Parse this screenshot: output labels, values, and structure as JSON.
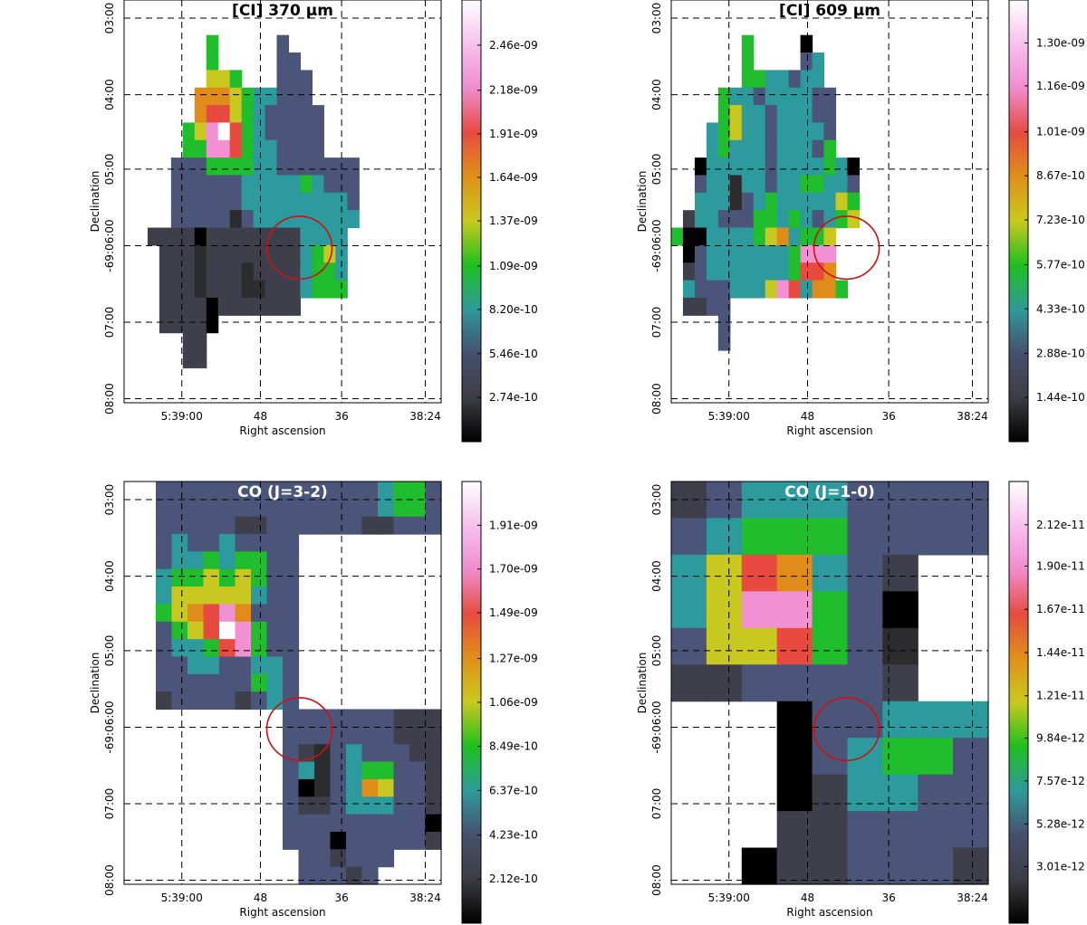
{
  "chart_data": [
    {
      "type": "heatmap",
      "title": "[CI] 370 µm",
      "title_color": "#000000",
      "xlabel": "Right ascension",
      "ylabel": "Declination",
      "x_ticks": [
        "5:39:00",
        "48",
        "36",
        "38:24"
      ],
      "y_ticks": [
        "03:00",
        "04:00",
        "05:00",
        "-69:06:00",
        "07:00",
        "08:00"
      ],
      "colorbar_ticks": [
        "2.74e-10",
        "5.46e-10",
        "8.20e-10",
        "1.09e-09",
        "1.37e-09",
        "1.64e-09",
        "1.91e-09",
        "2.18e-09",
        "2.46e-09"
      ],
      "colorbar_range": [
        0,
        2.74e-09
      ],
      "circle_marker": true,
      "grid": [
        "...........................",
        "...........................",
        ".......G.....A.............",
        ".......G.....AA............",
        ".......YYG...AAA...........",
        "......OOOYGTTAAA...........",
        "......ORRYGTAAAAA..........",
        ".....GYPWRGTAAAAA..........",
        ".....GGPPRGTTAAAA..........",
        "....AAAGGGGTTAAAAAAA.......",
        "....AAAAAATTTTTGTAAA.......",
        "....AAAAAATTTTTTTTTA.......",
        "....AAAAABATTTTTTTTT.......",
        "..DDDDKDDDDDDDDTTTT........",
        "...DDDBDDDDDDDDTGYT........",
        "...DDDBDDDBDDDDTGGT........",
        "...DDDBDDDBBDDDTGGG........",
        "...DDDDKDDDDDDD............",
        "...DDDDK...................",
        ".....DD....................",
        ".....DD....................",
        "...........................",
        "..........................."
      ]
    },
    {
      "type": "heatmap",
      "title": "[CI] 609 µm",
      "title_color": "#000000",
      "xlabel": "Right ascension",
      "ylabel": "Declination",
      "x_ticks": [
        "5:39:00",
        "48",
        "36",
        "38:24"
      ],
      "y_ticks": [
        "03:00",
        "04:00",
        "05:00",
        "-69:06:00",
        "07:00",
        "08:00"
      ],
      "colorbar_ticks": [
        "1.44e-10",
        "2.88e-10",
        "4.33e-10",
        "5.77e-10",
        "7.23e-10",
        "8.67e-10",
        "1.01e-09",
        "1.16e-09",
        "1.30e-09"
      ],
      "colorbar_range": [
        0,
        1.44e-09
      ],
      "circle_marker": true,
      "grid": [
        "...........................",
        "...........................",
        "......G....K...............",
        "......G....AT..............",
        "......GGTTATT..............",
        "....GTTATTTTAA.............",
        "....GYTTATTTAA.............",
        "...TGYTTATTTTA.............",
        "...TGTTTATTTAG.............",
        "..KTTTTTATTTTGTK...........",
        "..ATTBTTATTGGTTA...........",
        "..TTTBATGTTTTTYG...........",
        ".DTTAAAGGTGTATGY...........",
        "GKKTTTTGYOTGGY.............",
        ".KATTTTTTTGPPP.............",
        ".DATTTTTTTGRRO.............",
        ".TAAATTTYPRTOOG............",
        ".DDAA......................",
        "....A......................",
        "....A......................",
        "...........................",
        "...........................",
        "..........................."
      ]
    },
    {
      "type": "heatmap",
      "title": "CO (J=3-2)",
      "title_color": "#ffffff",
      "xlabel": "Right ascension",
      "ylabel": "Declination",
      "x_ticks": [
        "5:39:00",
        "48",
        "36",
        "38:24"
      ],
      "y_ticks": [
        "03:00",
        "04:00",
        "05:00",
        "-69:06:00",
        "07:00",
        "08:00"
      ],
      "colorbar_ticks": [
        "2.12e-10",
        "4.23e-10",
        "6.37e-10",
        "8.49e-10",
        "1.06e-09",
        "1.27e-09",
        "1.49e-09",
        "1.70e-09",
        "1.91e-09"
      ],
      "colorbar_range": [
        0,
        2.12e-09
      ],
      "circle_marker": true,
      "grid": [
        "..AAAAAAAAAAAAAATGGA",
        "..AAAAAAAAAAAAAATGGA",
        "..AAAAADDAAAAAADDAAA",
        "..ATAATAAAA.........",
        "..ATTGTGGAA.........",
        "..TGGYGYGAA.........",
        "..TYYYYYTAA.........",
        "..GYORPOAAA.........",
        "..AGYRWPGAA.........",
        "..ATTGRPGAA.........",
        "..AATTAATTA.........",
        "..AAAAAAGTA.........",
        "..DAAAADATA.........",
        "..........AAAAAAADDD",
        "..........AAAAAAADDD",
        "..........ADBATAAADD",
        "..........ATBATGGAAD",
        "..........AKBATOYAAD",
        "..........ADDATTTAAD",
        "..........AAAAAAAAAK",
        "..........AAAKAAAAAD",
        "...........AADAAA...",
        "...........AAADA...."
      ]
    },
    {
      "type": "heatmap",
      "title": "CO (J=1-0)",
      "title_color": "#ffffff",
      "xlabel": "Right ascension",
      "ylabel": "Declination",
      "x_ticks": [
        "5:39:00",
        "48",
        "36",
        "38:24"
      ],
      "y_ticks": [
        "03:00",
        "04:00",
        "05:00",
        "-69:06:00",
        "07:00",
        "08:00"
      ],
      "colorbar_ticks": [
        "3.01e-12",
        "5.28e-12",
        "7.57e-12",
        "9.84e-12",
        "1.21e-11",
        "1.44e-11",
        "1.67e-11",
        "1.90e-11",
        "2.12e-11"
      ],
      "colorbar_range": [
        0,
        2.35e-11
      ],
      "circle_marker": true,
      "grid": [
        "DATTTAAAA",
        "ATGGGAAAA",
        "TYROTAD..",
        "TYPPGAK..",
        "AYYRGAB..",
        "DDAAAAD..",
        "...KAATTT",
        "...KATGGA",
        "...KDTTAA",
        "...DDAAAA",
        "..KDDAAAD"
      ]
    }
  ],
  "colors": {
    "grid_line": "#000000",
    "circle": "#cc1111",
    "colormap": [
      "#000000",
      "#3c3c44",
      "#46506e",
      "#2f9a9a",
      "#1fbf1f",
      "#c9c91f",
      "#e0901a",
      "#e64b3f",
      "#f08ccd",
      "#f7c0ef",
      "#ffffff"
    ],
    "palette_keys": {
      "K": "#000000",
      "B": "#2c2c2e",
      "D": "#3f3f4c",
      "A": "#4a5579",
      "T": "#2d9b9e",
      "G": "#20bd2c",
      "Y": "#c8c820",
      "O": "#e08c1a",
      "R": "#e84a40",
      "P": "#f190d2",
      "W": "#ffffff"
    }
  }
}
